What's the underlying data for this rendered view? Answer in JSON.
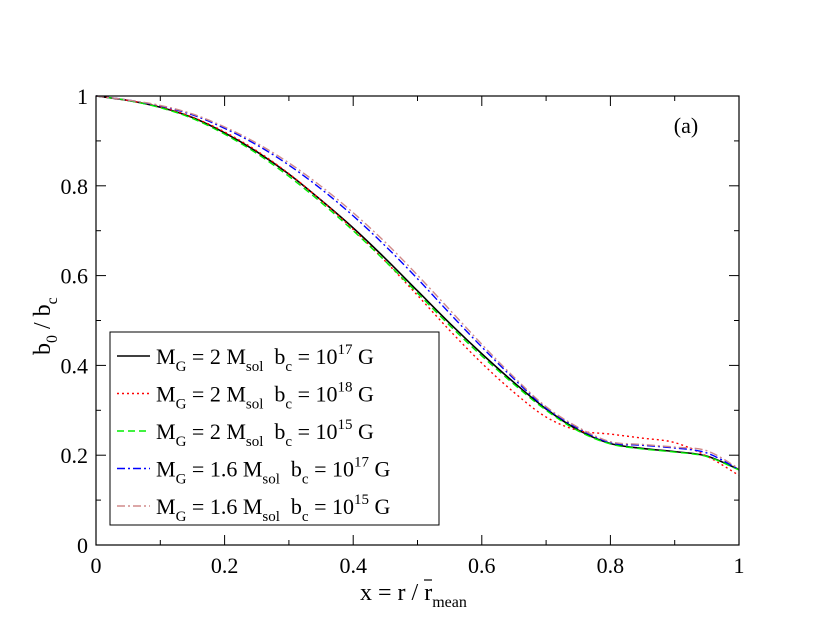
{
  "chart_data": {
    "type": "line",
    "annotation": "(a)",
    "xlabel": {
      "main": "x = ",
      "rbar": "r",
      "mid": " / r",
      "sub": "mean"
    },
    "ylabel": {
      "b": "b",
      "sub0": "0",
      "mid": " / b",
      "subc": "c"
    },
    "xlim": [
      0,
      1
    ],
    "ylim": [
      0,
      1
    ],
    "xticks": [
      0,
      0.2,
      0.4,
      0.6,
      0.8,
      1
    ],
    "xtick_labels": [
      "0",
      "0.2",
      "0.4",
      "0.6",
      "0.8",
      "1"
    ],
    "yticks": [
      0,
      0.2,
      0.4,
      0.6,
      0.8,
      1
    ],
    "ytick_labels": [
      "0",
      "0.2",
      "0.4",
      "0.6",
      "0.8",
      "1"
    ],
    "grid": false,
    "legend_position": "bottom-left",
    "series": [
      {
        "name": "M_G = 2 M_sol  b_c = 10^17 G",
        "legend": {
          "m": "M",
          "msub": "G",
          "eq": " = 2 M",
          "solsub": "sol",
          "b": "  b",
          "bsub": "c",
          "val": " = 10",
          "exp": "17",
          "unit": " G"
        },
        "color": "#000000",
        "dash": "",
        "x": [
          0,
          0.05,
          0.1,
          0.15,
          0.2,
          0.25,
          0.3,
          0.35,
          0.4,
          0.45,
          0.5,
          0.55,
          0.6,
          0.65,
          0.7,
          0.75,
          0.8,
          0.85,
          0.9,
          0.95,
          1.0
        ],
        "y": [
          1.0,
          0.99,
          0.975,
          0.952,
          0.918,
          0.876,
          0.826,
          0.768,
          0.706,
          0.638,
          0.566,
          0.494,
          0.426,
          0.362,
          0.303,
          0.256,
          0.226,
          0.215,
          0.208,
          0.198,
          0.168
        ]
      },
      {
        "name": "M_G = 2 M_sol  b_c = 10^18 G",
        "legend": {
          "m": "M",
          "msub": "G",
          "eq": " = 2 M",
          "solsub": "sol",
          "b": "  b",
          "bsub": "c",
          "val": " = 10",
          "exp": "18",
          "unit": " G"
        },
        "color": "#ff0000",
        "dash": "2,3",
        "x": [
          0,
          0.05,
          0.1,
          0.15,
          0.2,
          0.25,
          0.3,
          0.35,
          0.4,
          0.45,
          0.5,
          0.55,
          0.6,
          0.65,
          0.7,
          0.75,
          0.8,
          0.85,
          0.9,
          0.95,
          1.0
        ],
        "y": [
          1.0,
          0.99,
          0.976,
          0.953,
          0.92,
          0.878,
          0.827,
          0.768,
          0.703,
          0.632,
          0.556,
          0.478,
          0.405,
          0.34,
          0.285,
          0.255,
          0.247,
          0.238,
          0.228,
          0.198,
          0.155
        ]
      },
      {
        "name": "M_G = 2 M_sol  b_c = 10^15 G",
        "legend": {
          "m": "M",
          "msub": "G",
          "eq": " = 2 M",
          "solsub": "sol",
          "b": "  b",
          "bsub": "c",
          "val": " = 10",
          "exp": "15",
          "unit": " G"
        },
        "color": "#00ee00",
        "dash": "7,4",
        "x": [
          0,
          0.05,
          0.1,
          0.15,
          0.2,
          0.25,
          0.3,
          0.35,
          0.4,
          0.45,
          0.5,
          0.55,
          0.6,
          0.65,
          0.7,
          0.75,
          0.8,
          0.85,
          0.9,
          0.95,
          1.0
        ],
        "y": [
          1.0,
          0.99,
          0.974,
          0.95,
          0.915,
          0.872,
          0.821,
          0.763,
          0.7,
          0.632,
          0.561,
          0.489,
          0.421,
          0.358,
          0.3,
          0.254,
          0.225,
          0.214,
          0.207,
          0.197,
          0.167
        ]
      },
      {
        "name": "M_G = 1.6 M_sol  b_c = 10^17 G",
        "legend": {
          "m": "M",
          "msub": "G",
          "eq": " = 1.6 M",
          "solsub": "sol",
          "b": "  b",
          "bsub": "c",
          "val": " = 10",
          "exp": "17",
          "unit": " G"
        },
        "color": "#0000ff",
        "dash": "8,3,2,3",
        "x": [
          0,
          0.05,
          0.1,
          0.15,
          0.2,
          0.25,
          0.3,
          0.35,
          0.4,
          0.45,
          0.5,
          0.55,
          0.6,
          0.65,
          0.7,
          0.75,
          0.8,
          0.85,
          0.9,
          0.95,
          1.0
        ],
        "y": [
          1.0,
          0.991,
          0.978,
          0.958,
          0.928,
          0.891,
          0.846,
          0.793,
          0.733,
          0.666,
          0.593,
          0.516,
          0.441,
          0.37,
          0.305,
          0.26,
          0.228,
          0.222,
          0.216,
          0.205,
          0.168
        ]
      },
      {
        "name": "M_G = 1.6 M_sol  b_c = 10^15 G",
        "legend": {
          "m": "M",
          "msub": "G",
          "eq": " = 1.6 M",
          "solsub": "sol",
          "b": "  b",
          "bsub": "c",
          "val": " = 10",
          "exp": "15",
          "unit": " G"
        },
        "color": "#d08a8a",
        "dash": "8,3,2,3",
        "x": [
          0,
          0.05,
          0.1,
          0.15,
          0.2,
          0.25,
          0.3,
          0.35,
          0.4,
          0.45,
          0.5,
          0.55,
          0.6,
          0.65,
          0.7,
          0.75,
          0.8,
          0.85,
          0.9,
          0.95,
          1.0
        ],
        "y": [
          1.0,
          0.991,
          0.979,
          0.96,
          0.931,
          0.895,
          0.851,
          0.799,
          0.74,
          0.674,
          0.601,
          0.524,
          0.447,
          0.374,
          0.308,
          0.262,
          0.23,
          0.224,
          0.218,
          0.21,
          0.17
        ]
      }
    ]
  }
}
